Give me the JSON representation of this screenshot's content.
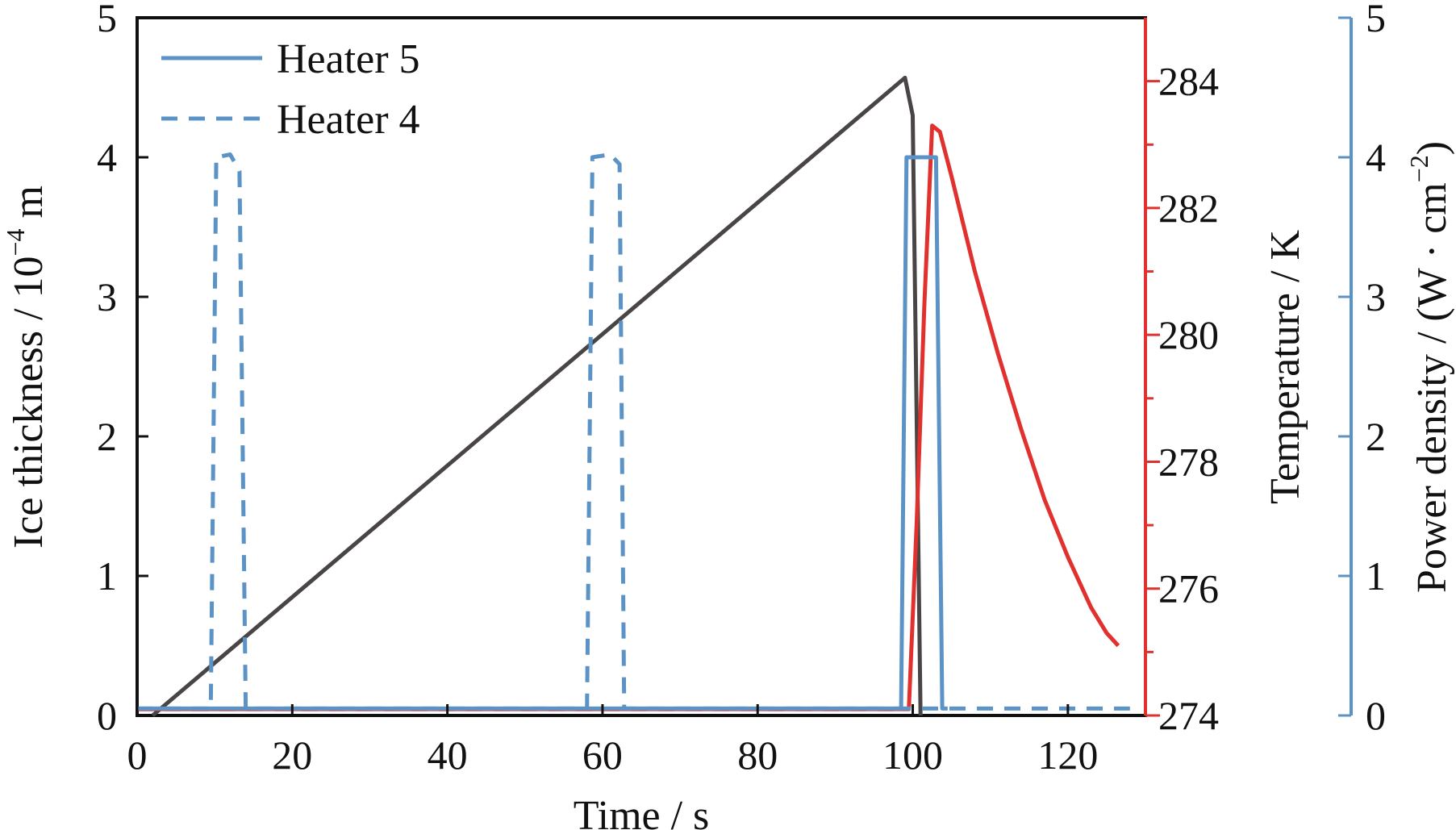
{
  "chart_data": {
    "type": "line",
    "x_axis": {
      "label_main": "Time / s",
      "range": [
        0,
        130
      ],
      "ticks": [
        0,
        20,
        40,
        60,
        80,
        100,
        120
      ],
      "tick_labels": [
        "0",
        "20",
        "40",
        "60",
        "80",
        "100",
        "120"
      ]
    },
    "y_left": {
      "label_prefix": "Ice thickness / 10",
      "label_sup": "−4",
      "label_suffix": " m",
      "range": [
        0,
        5
      ],
      "ticks": [
        0,
        1,
        2,
        3,
        4,
        5
      ],
      "tick_labels": [
        "0",
        "1",
        "2",
        "3",
        "4",
        "5"
      ],
      "color": "#111111"
    },
    "y_right_temp": {
      "label": "Temperature / K",
      "range": [
        274,
        285
      ],
      "ticks": [
        274,
        276,
        278,
        280,
        282,
        284
      ],
      "tick_labels": [
        "274",
        "276",
        "278",
        "280",
        "282",
        "284"
      ],
      "color": "#e0312f"
    },
    "y_right_power": {
      "label_prefix": "Power density / (W · cm",
      "label_sup": "−2",
      "label_suffix": ")",
      "range": [
        0,
        5
      ],
      "ticks": [
        0,
        1,
        2,
        3,
        4,
        5
      ],
      "tick_labels": [
        "0",
        "1",
        "2",
        "3",
        "4",
        "5"
      ],
      "color": "#5b93c7"
    },
    "legend": [
      {
        "label": "Heater 5",
        "style": "solid",
        "color": "#5b93c7"
      },
      {
        "label": "Heater 4",
        "style": "dashed",
        "color": "#5b93c7"
      }
    ],
    "series": [
      {
        "axis": "left",
        "color": "#4a4545",
        "style": "solid",
        "points": [
          [
            2,
            0
          ],
          [
            99,
            4.57
          ],
          [
            100,
            4.3
          ],
          [
            101,
            0
          ]
        ]
      },
      {
        "axis": "temp",
        "color": "#e0312f",
        "style": "solid",
        "points": [
          [
            0,
            274.1
          ],
          [
            99.5,
            274.1
          ],
          [
            100.5,
            277.0
          ],
          [
            101.5,
            280.5
          ],
          [
            102.5,
            283.3
          ],
          [
            103.5,
            283.2
          ],
          [
            105,
            282.5
          ],
          [
            108,
            281.0
          ],
          [
            111,
            279.7
          ],
          [
            114,
            278.5
          ],
          [
            117,
            277.4
          ],
          [
            120,
            276.5
          ],
          [
            123,
            275.7
          ],
          [
            125,
            275.3
          ],
          [
            126.5,
            275.1
          ]
        ]
      },
      {
        "axis": "temp",
        "color": "#e0312f",
        "style": "dashed",
        "points": [
          [
            0,
            274.1
          ],
          [
            99,
            274.1
          ]
        ]
      },
      {
        "name": "Heater 5",
        "axis": "power",
        "color": "#5b93c7",
        "style": "solid",
        "points": [
          [
            0,
            0.05
          ],
          [
            98.5,
            0.05
          ],
          [
            99.2,
            4.0
          ],
          [
            103.0,
            4.0
          ],
          [
            103.8,
            0.05
          ],
          [
            104.5,
            0.05
          ]
        ]
      },
      {
        "name": "Heater 4",
        "axis": "power",
        "color": "#5b93c7",
        "style": "dashed",
        "points": [
          [
            0,
            0.05
          ],
          [
            9.5,
            0.05
          ],
          [
            10.2,
            4.0
          ],
          [
            12.0,
            4.02
          ],
          [
            13.2,
            3.9
          ],
          [
            14.0,
            0.05
          ],
          [
            58,
            0.05
          ],
          [
            58.7,
            4.0
          ],
          [
            61.0,
            4.02
          ],
          [
            62.2,
            3.95
          ],
          [
            62.8,
            0.05
          ],
          [
            104.5,
            0.05
          ],
          [
            128,
            0.05
          ]
        ]
      }
    ]
  }
}
